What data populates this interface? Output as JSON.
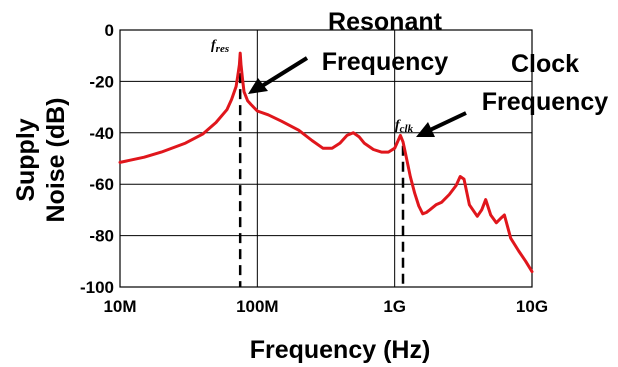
{
  "chart_data": {
    "type": "line",
    "xlabel": "Frequency (Hz)",
    "ylabel_lines": [
      "Supply",
      "Noise (dB)"
    ],
    "x_scale": "log",
    "xlim": [
      10000000,
      10000000000
    ],
    "ylim": [
      -100,
      0
    ],
    "grid": true,
    "x_ticks": [
      {
        "value": 10000000,
        "label": "10M"
      },
      {
        "value": 100000000,
        "label": "100M"
      },
      {
        "value": 1000000000,
        "label": "1G"
      },
      {
        "value": 10000000000,
        "label": "10G"
      }
    ],
    "y_ticks": [
      {
        "value": 0,
        "label": "0"
      },
      {
        "value": -20,
        "label": "-20"
      },
      {
        "value": -40,
        "label": "-40"
      },
      {
        "value": -60,
        "label": "-60"
      },
      {
        "value": -80,
        "label": "-80"
      },
      {
        "value": -100,
        "label": "-100"
      }
    ],
    "line_color": "#e0161c",
    "series": [
      {
        "x": [
          10000000,
          15000000,
          20000000,
          30000000,
          40000000,
          50000000,
          60000000,
          65000000,
          70000000,
          72000000,
          74000000,
          75000000,
          76000000,
          78000000,
          80000000,
          85000000,
          90000000,
          100000000,
          120000000,
          150000000,
          200000000,
          250000000,
          300000000,
          350000000,
          400000000,
          450000000,
          500000000,
          550000000,
          600000000,
          700000000,
          800000000,
          900000000,
          1000000000,
          1050000000,
          1100000000,
          1150000000,
          1200000000,
          1300000000,
          1400000000,
          1500000000,
          1600000000,
          1700000000,
          1800000000,
          2000000000,
          2200000000,
          2500000000,
          2800000000,
          3000000000,
          3200000000,
          3500000000,
          4000000000,
          4300000000,
          4600000000,
          5000000000,
          5500000000,
          6000000000,
          6300000000,
          7000000000,
          8000000000,
          9000000000,
          10000000000
        ],
        "y": [
          -51.5,
          -49.5,
          -47.5,
          -44,
          -40.5,
          -36,
          -31,
          -27,
          -22,
          -18,
          -13.5,
          -9,
          -13.5,
          -19,
          -24,
          -27.5,
          -29,
          -31.5,
          -33,
          -35.5,
          -39,
          -43,
          -46,
          -46,
          -44,
          -41,
          -40,
          -41.5,
          -44,
          -46.5,
          -47.5,
          -47.5,
          -46,
          -43.5,
          -41,
          -43.5,
          -48,
          -57,
          -63.5,
          -68.5,
          -71.5,
          -71,
          -70,
          -68,
          -67,
          -64,
          -60.5,
          -57,
          -58,
          -68,
          -72.5,
          -70,
          -66,
          -72,
          -75,
          -73,
          -72,
          -81,
          -86,
          -90,
          -94
        ]
      }
    ],
    "annotations": {
      "fres": {
        "symbol": "f",
        "subscript": "res",
        "x": 75000000,
        "title_lines": [
          "Resonant",
          "Frequency"
        ]
      },
      "fclk": {
        "symbol": "f",
        "subscript": "clk",
        "x": 1150000000,
        "title_lines": [
          "Clock",
          "Frequency"
        ]
      }
    }
  }
}
